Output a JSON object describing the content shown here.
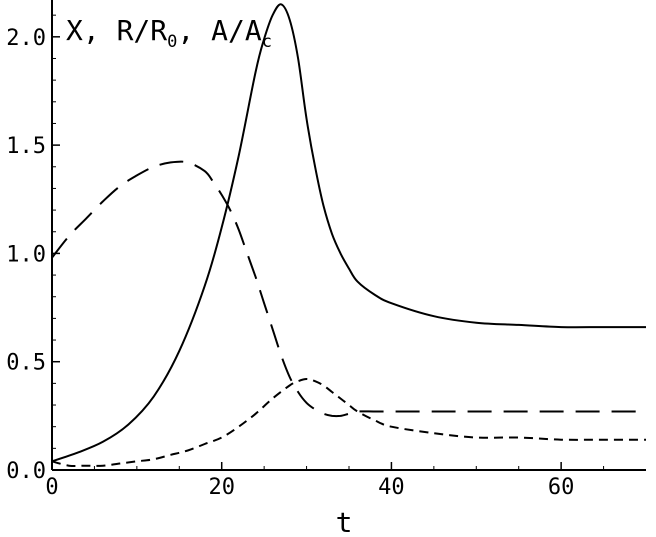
{
  "chart_data": {
    "type": "line",
    "xlabel": "t",
    "ylabel": {
      "parts": [
        "X, R/R",
        "0",
        ", A/A",
        "c"
      ]
    },
    "xlim": [
      0,
      70
    ],
    "ylim": [
      0,
      2.17
    ],
    "xticks": [
      0,
      20,
      40,
      60
    ],
    "xtick_labels": [
      "0",
      "20",
      "40",
      "60"
    ],
    "yticks": [
      0,
      0.5,
      1.0,
      1.5,
      2.0
    ],
    "ytick_labels": [
      "0.0",
      "0.5",
      "1.0",
      "1.5",
      "2.0"
    ],
    "grid": false,
    "legend": "none",
    "series": [
      {
        "style": "solid",
        "color": "#000000",
        "x": [
          0,
          3,
          6,
          9,
          12,
          15,
          18,
          20,
          22,
          24,
          25,
          26,
          27,
          28,
          29,
          30,
          31,
          32,
          33,
          34,
          35,
          36,
          38,
          40,
          45,
          50,
          55,
          60,
          65,
          70
        ],
        "y": [
          0.04,
          0.08,
          0.13,
          0.21,
          0.34,
          0.55,
          0.85,
          1.12,
          1.45,
          1.84,
          1.99,
          2.1,
          2.15,
          2.08,
          1.9,
          1.62,
          1.4,
          1.22,
          1.09,
          1.0,
          0.93,
          0.87,
          0.81,
          0.77,
          0.71,
          0.68,
          0.67,
          0.66,
          0.66,
          0.66
        ]
      },
      {
        "style": "long-dash",
        "color": "#000000",
        "x": [
          0,
          2,
          4,
          6,
          8,
          10,
          12,
          14,
          16,
          18,
          19,
          20,
          21,
          22,
          23,
          24,
          25,
          26,
          27,
          28,
          29,
          30,
          31,
          32,
          33,
          34,
          35,
          36,
          38,
          40,
          45,
          50,
          55,
          60,
          65,
          70
        ],
        "y": [
          0.98,
          1.08,
          1.16,
          1.24,
          1.31,
          1.36,
          1.4,
          1.42,
          1.42,
          1.38,
          1.33,
          1.27,
          1.2,
          1.11,
          1.0,
          0.89,
          0.77,
          0.65,
          0.53,
          0.43,
          0.36,
          0.31,
          0.28,
          0.26,
          0.25,
          0.25,
          0.26,
          0.27,
          0.27,
          0.27,
          0.27,
          0.27,
          0.27,
          0.27,
          0.27,
          0.27
        ]
      },
      {
        "style": "short-dash",
        "color": "#000000",
        "x": [
          0,
          2,
          4,
          6,
          8,
          10,
          12,
          14,
          16,
          18,
          20,
          22,
          24,
          26,
          28,
          29,
          30,
          31,
          32,
          33,
          34,
          35,
          36,
          38,
          40,
          45,
          50,
          55,
          60,
          65,
          70
        ],
        "y": [
          0.04,
          0.02,
          0.02,
          0.02,
          0.03,
          0.04,
          0.05,
          0.07,
          0.09,
          0.12,
          0.15,
          0.2,
          0.26,
          0.33,
          0.39,
          0.41,
          0.42,
          0.41,
          0.39,
          0.36,
          0.33,
          0.3,
          0.27,
          0.23,
          0.2,
          0.17,
          0.15,
          0.15,
          0.14,
          0.14,
          0.14
        ]
      }
    ]
  }
}
